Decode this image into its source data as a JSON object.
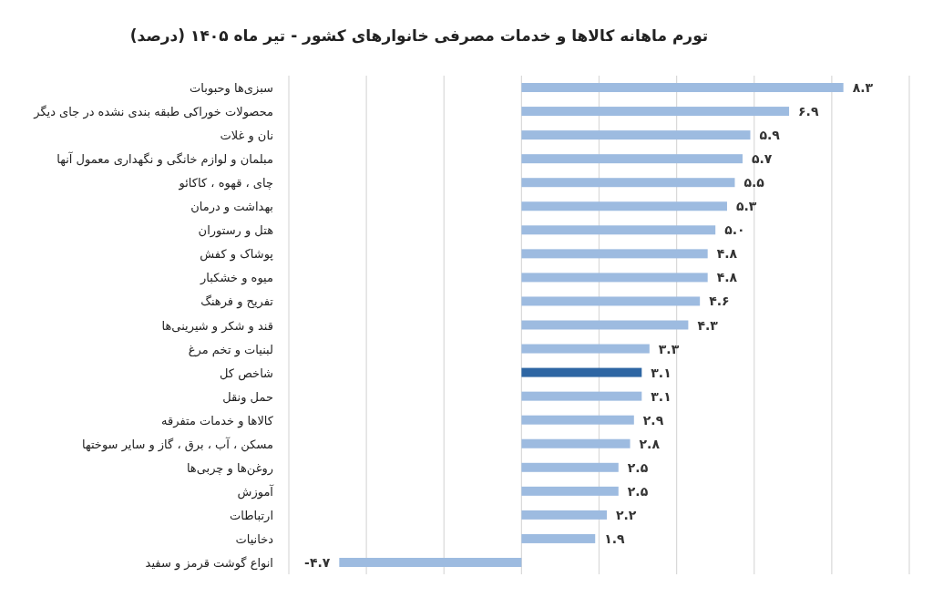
{
  "chart_data": {
    "type": "bar",
    "orientation": "horizontal",
    "title": "تورم ماهانه کالاها و خدمات مصرفی خانوارهای کشور - تیر ماه ۱۴۰۵ (درصد)",
    "categories": [
      "سبزی‌ها وحبوبات",
      "محصولات خوراکی طبقه بندی نشده در جای دیگر",
      "نان و غلات",
      "مبلمان و لوازم خانگی و نگهداری معمول آنها",
      "چای ، قهوه ، کاکائو",
      "بهداشت و درمان",
      "هتل و رستوران",
      "پوشاک و کفش",
      "میوه و خشکبار",
      "تفریح و فرهنگ",
      "قند و شکر و شیرینی‌ها",
      "لبنیات و تخم مرغ",
      "شاخص کل",
      "حمل ونقل",
      "کالاها و خدمات متفرقه",
      "مسکن ، آب ، برق ، گاز و سایر سوختها",
      "روغن‌ها و چربی‌ها",
      "آموزش",
      "ارتباطات",
      "دخانیات",
      "انواع گوشت قرمز و سفید"
    ],
    "values": [
      8.3,
      6.9,
      5.9,
      5.7,
      5.5,
      5.3,
      5.0,
      4.8,
      4.8,
      4.6,
      4.3,
      3.3,
      3.1,
      3.1,
      2.9,
      2.8,
      2.5,
      2.5,
      2.2,
      1.9,
      -4.7
    ],
    "value_labels": [
      "۸.۳",
      "۶.۹",
      "۵.۹",
      "۵.۷",
      "۵.۵",
      "۵.۳",
      "۵.۰",
      "۴.۸",
      "۴.۸",
      "۴.۶",
      "۴.۳",
      "۳.۳",
      "۳.۱",
      "۳.۱",
      "۲.۹",
      "۲.۸",
      "۲.۵",
      "۲.۵",
      "۲.۲",
      "۱.۹",
      "-۴.۷"
    ],
    "colors": [
      "#9dbbe0",
      "#9dbbe0",
      "#9dbbe0",
      "#9dbbe0",
      "#9dbbe0",
      "#9dbbe0",
      "#9dbbe0",
      "#9dbbe0",
      "#9dbbe0",
      "#9dbbe0",
      "#9dbbe0",
      "#9dbbe0",
      "#2e66a3",
      "#9dbbe0",
      "#9dbbe0",
      "#9dbbe0",
      "#9dbbe0",
      "#9dbbe0",
      "#9dbbe0",
      "#9dbbe0",
      "#9dbbe0"
    ],
    "xlim": [
      -6,
      10
    ],
    "xticks": [
      {
        "value": -6,
        "label": null
      },
      {
        "value": -4,
        "label": null
      },
      {
        "value": -2,
        "label": null
      },
      {
        "value": 0,
        "label": null
      },
      {
        "value": 2,
        "label": null
      },
      {
        "value": 4,
        "label": null
      },
      {
        "value": 6,
        "label": null
      },
      {
        "value": 8,
        "label": null
      },
      {
        "value": 10,
        "label": null
      }
    ],
    "grid": "x",
    "tick_labels": "y"
  }
}
